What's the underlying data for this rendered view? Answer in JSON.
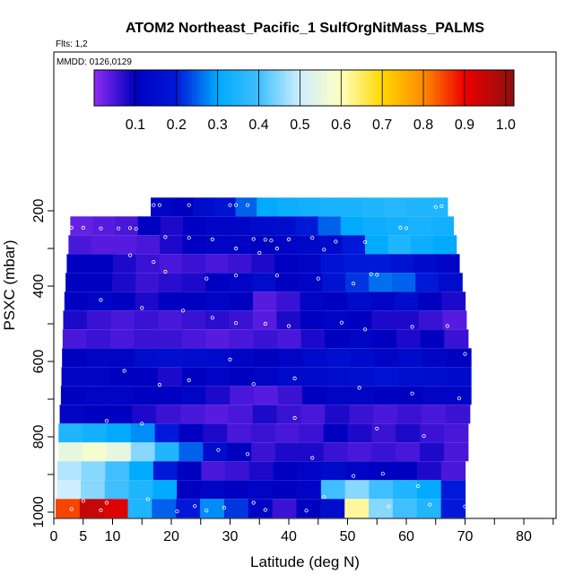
{
  "chart_data": {
    "type": "heatmap",
    "title": "ATOM2 Northeast_Pacific_1 SulfOrgNitMass_PALMS",
    "flights_label": "Flts: 1,2",
    "dates_label": "MMDD: 0126,0129",
    "xlabel": "Latitude (deg N)",
    "ylabel": "PSXC (mbar)",
    "xlim": [
      0,
      85
    ],
    "ylim": [
      1000,
      50
    ],
    "y_reversed": true,
    "x_ticks": [
      0,
      5,
      10,
      20,
      30,
      40,
      50,
      60,
      70,
      80
    ],
    "x_minor_ticks": [
      15,
      25,
      35,
      45,
      55,
      65,
      75,
      85
    ],
    "y_ticks": [
      200,
      400,
      600,
      800,
      1000
    ],
    "y_minor_ticks": [
      300,
      500,
      700,
      900
    ],
    "colorbar": {
      "range": [
        0,
        1.02
      ],
      "ticks": [
        "0.1",
        "0.2",
        "0.3",
        "0.4",
        "0.5",
        "0.6",
        "0.7",
        "0.8",
        "0.9",
        "1.0"
      ],
      "tick_values": [
        0.1,
        0.2,
        0.3,
        0.4,
        0.5,
        0.6,
        0.7,
        0.8,
        0.9,
        1.0
      ],
      "stops": [
        {
          "v": 0.0,
          "color": "#8f2df2"
        },
        {
          "v": 0.1,
          "color": "#0000c0"
        },
        {
          "v": 0.2,
          "color": "#0018d8"
        },
        {
          "v": 0.3,
          "color": "#00aaff"
        },
        {
          "v": 0.4,
          "color": "#3fbfff"
        },
        {
          "v": 0.5,
          "color": "#cfeeff"
        },
        {
          "v": 0.6,
          "color": "#ffffc0"
        },
        {
          "v": 0.7,
          "color": "#ffd800"
        },
        {
          "v": 0.8,
          "color": "#ff8a00"
        },
        {
          "v": 0.9,
          "color": "#ee0000"
        },
        {
          "v": 1.02,
          "color": "#8b1010"
        }
      ]
    },
    "bands": [
      {
        "p": 190,
        "lat_min": 16.5,
        "lat_max": 67.0,
        "values": [
          0.12,
          0.1,
          0.15,
          0.18,
          0.25,
          0.3,
          0.32,
          0.33,
          0.34,
          0.34,
          0.35,
          0.36,
          0.35,
          0.35
        ]
      },
      {
        "p": 240,
        "lat_min": 2.8,
        "lat_max": 68.0,
        "values": [
          0.03,
          0.04,
          0.05,
          0.1,
          0.08,
          0.1,
          0.12,
          0.12,
          0.14,
          0.15,
          0.2,
          0.25,
          0.3,
          0.32,
          0.33,
          0.34,
          0.33
        ]
      },
      {
        "p": 290,
        "lat_min": 2.5,
        "lat_max": 68.5,
        "values": [
          0.05,
          0.04,
          0.04,
          0.05,
          0.08,
          0.1,
          0.12,
          0.12,
          0.1,
          0.12,
          0.13,
          0.14,
          0.2,
          0.3,
          0.35,
          0.32,
          0.3
        ]
      },
      {
        "p": 340,
        "lat_min": 2.2,
        "lat_max": 69.0,
        "values": [
          0.1,
          0.1,
          0.08,
          0.06,
          0.05,
          0.06,
          0.05,
          0.06,
          0.08,
          0.1,
          0.12,
          0.18,
          0.2,
          0.2,
          0.18,
          0.14,
          0.12
        ]
      },
      {
        "p": 390,
        "lat_min": 2.0,
        "lat_max": 69.5,
        "values": [
          0.1,
          0.1,
          0.08,
          0.06,
          0.07,
          0.08,
          0.1,
          0.12,
          0.15,
          0.1,
          0.12,
          0.18,
          0.22,
          0.26,
          0.25,
          0.2,
          0.15
        ]
      },
      {
        "p": 440,
        "lat_min": 1.8,
        "lat_max": 70.0,
        "values": [
          0.1,
          0.12,
          0.1,
          0.08,
          0.1,
          0.1,
          0.12,
          0.1,
          0.04,
          0.06,
          0.12,
          0.1,
          0.14,
          0.12,
          0.15,
          0.1,
          0.08
        ]
      },
      {
        "p": 490,
        "lat_min": 1.6,
        "lat_max": 70.2,
        "values": [
          0.08,
          0.06,
          0.05,
          0.06,
          0.05,
          0.06,
          0.07,
          0.06,
          0.04,
          0.08,
          0.1,
          0.12,
          0.1,
          0.08,
          0.08,
          0.06,
          0.04
        ]
      },
      {
        "p": 540,
        "lat_min": 1.5,
        "lat_max": 70.5,
        "values": [
          0.05,
          0.06,
          0.05,
          0.06,
          0.06,
          0.05,
          0.04,
          0.05,
          0.06,
          0.05,
          0.08,
          0.1,
          0.12,
          0.1,
          0.08,
          0.1,
          0.06
        ]
      },
      {
        "p": 590,
        "lat_min": 1.4,
        "lat_max": 71.0,
        "values": [
          0.1,
          0.12,
          0.12,
          0.15,
          0.16,
          0.15,
          0.14,
          0.12,
          0.1,
          0.12,
          0.14,
          0.16,
          0.14,
          0.12,
          0.14,
          0.12,
          0.1
        ]
      },
      {
        "p": 640,
        "lat_min": 1.3,
        "lat_max": 71.0,
        "values": [
          0.12,
          0.12,
          0.1,
          0.1,
          0.08,
          0.1,
          0.12,
          0.1,
          0.12,
          0.14,
          0.14,
          0.15,
          0.16,
          0.18,
          0.16,
          0.15,
          0.14
        ]
      },
      {
        "p": 690,
        "lat_min": 1.2,
        "lat_max": 71.0,
        "values": [
          0.1,
          0.12,
          0.12,
          0.1,
          0.1,
          0.12,
          0.08,
          0.05,
          0.04,
          0.06,
          0.1,
          0.12,
          0.12,
          0.1,
          0.1,
          0.12,
          0.12
        ]
      },
      {
        "p": 740,
        "lat_min": 1.0,
        "lat_max": 70.8,
        "values": [
          0.12,
          0.1,
          0.1,
          0.08,
          0.06,
          0.05,
          0.04,
          0.05,
          0.08,
          0.06,
          0.05,
          0.08,
          0.06,
          0.05,
          0.06,
          0.05,
          0.06
        ]
      },
      {
        "p": 790,
        "lat_min": 0.8,
        "lat_max": 70.5,
        "values": [
          0.35,
          0.33,
          0.3,
          0.28,
          0.2,
          0.1,
          0.08,
          0.05,
          0.06,
          0.05,
          0.06,
          0.1,
          0.08,
          0.06,
          0.08,
          0.06,
          0.05
        ]
      },
      {
        "p": 840,
        "lat_min": 0.8,
        "lat_max": 70.5,
        "values": [
          0.55,
          0.58,
          0.55,
          0.45,
          0.35,
          0.25,
          0.15,
          0.1,
          0.06,
          0.08,
          0.08,
          0.06,
          0.05,
          0.06,
          0.05,
          0.08,
          0.05
        ]
      },
      {
        "p": 890,
        "lat_min": 0.6,
        "lat_max": 70.0,
        "values": [
          0.48,
          0.45,
          0.4,
          0.3,
          0.2,
          0.1,
          0.05,
          0.06,
          0.08,
          0.1,
          0.12,
          0.14,
          0.12,
          0.1,
          0.1,
          0.08,
          0.05
        ]
      },
      {
        "p": 940,
        "lat_min": 0.5,
        "lat_max": 70.0,
        "values": [
          0.5,
          0.45,
          0.4,
          0.35,
          0.3,
          0.1,
          0.12,
          0.1,
          0.12,
          0.1,
          0.12,
          0.4,
          0.45,
          0.4,
          0.35,
          0.3,
          0.2
        ]
      },
      {
        "p": 990,
        "lat_min": 0.3,
        "lat_max": 70.0,
        "values": [
          0.85,
          0.95,
          0.92,
          0.35,
          0.25,
          0.2,
          0.28,
          0.22,
          0.12,
          0.06,
          0.1,
          0.15,
          0.62,
          0.45,
          0.4,
          0.35,
          0.2
        ]
      }
    ],
    "sample_points": [
      [
        17,
        185
      ],
      [
        18,
        185
      ],
      [
        23,
        185
      ],
      [
        30,
        185
      ],
      [
        31,
        185
      ],
      [
        33,
        185
      ],
      [
        65,
        190
      ],
      [
        66,
        188
      ],
      [
        3,
        245
      ],
      [
        5,
        245
      ],
      [
        8,
        247
      ],
      [
        11,
        247
      ],
      [
        13,
        246
      ],
      [
        14,
        248
      ],
      [
        59,
        245
      ],
      [
        60,
        246
      ],
      [
        19,
        270
      ],
      [
        23,
        272
      ],
      [
        27,
        276
      ],
      [
        34,
        275
      ],
      [
        36,
        277
      ],
      [
        37,
        279
      ],
      [
        40,
        276
      ],
      [
        44,
        272
      ],
      [
        48,
        282
      ],
      [
        53,
        283
      ],
      [
        31,
        300
      ],
      [
        38,
        300
      ],
      [
        35,
        312
      ],
      [
        46,
        303
      ],
      [
        54,
        368
      ],
      [
        55,
        370
      ],
      [
        13,
        318
      ],
      [
        17,
        336
      ],
      [
        19,
        362
      ],
      [
        26,
        380
      ],
      [
        31,
        372
      ],
      [
        38,
        372
      ],
      [
        45,
        380
      ],
      [
        51,
        393
      ],
      [
        8,
        437
      ],
      [
        15,
        458
      ],
      [
        22,
        465
      ],
      [
        27,
        484
      ],
      [
        31,
        498
      ],
      [
        36,
        500
      ],
      [
        40,
        506
      ],
      [
        49,
        497
      ],
      [
        53,
        515
      ],
      [
        61,
        508
      ],
      [
        67,
        506
      ],
      [
        70,
        580
      ],
      [
        30,
        595
      ],
      [
        12,
        625
      ],
      [
        18,
        662
      ],
      [
        23,
        650
      ],
      [
        34,
        660
      ],
      [
        41,
        645
      ],
      [
        52,
        670
      ],
      [
        61,
        685
      ],
      [
        69,
        698
      ],
      [
        9,
        758
      ],
      [
        15,
        765
      ],
      [
        41,
        750
      ],
      [
        55,
        778
      ],
      [
        63,
        798
      ],
      [
        28,
        835
      ],
      [
        33,
        846
      ],
      [
        44,
        856
      ],
      [
        51,
        904
      ],
      [
        56,
        898
      ],
      [
        62,
        931
      ],
      [
        5,
        970
      ],
      [
        9,
        975
      ],
      [
        16,
        966
      ],
      [
        24,
        984
      ],
      [
        29,
        988
      ],
      [
        34,
        975
      ],
      [
        46,
        960
      ],
      [
        57,
        985
      ],
      [
        64,
        980
      ],
      [
        70,
        985
      ],
      [
        3,
        992
      ],
      [
        8,
        995
      ],
      [
        21,
        998
      ],
      [
        26,
        996
      ],
      [
        36,
        994
      ],
      [
        43,
        996
      ]
    ]
  }
}
